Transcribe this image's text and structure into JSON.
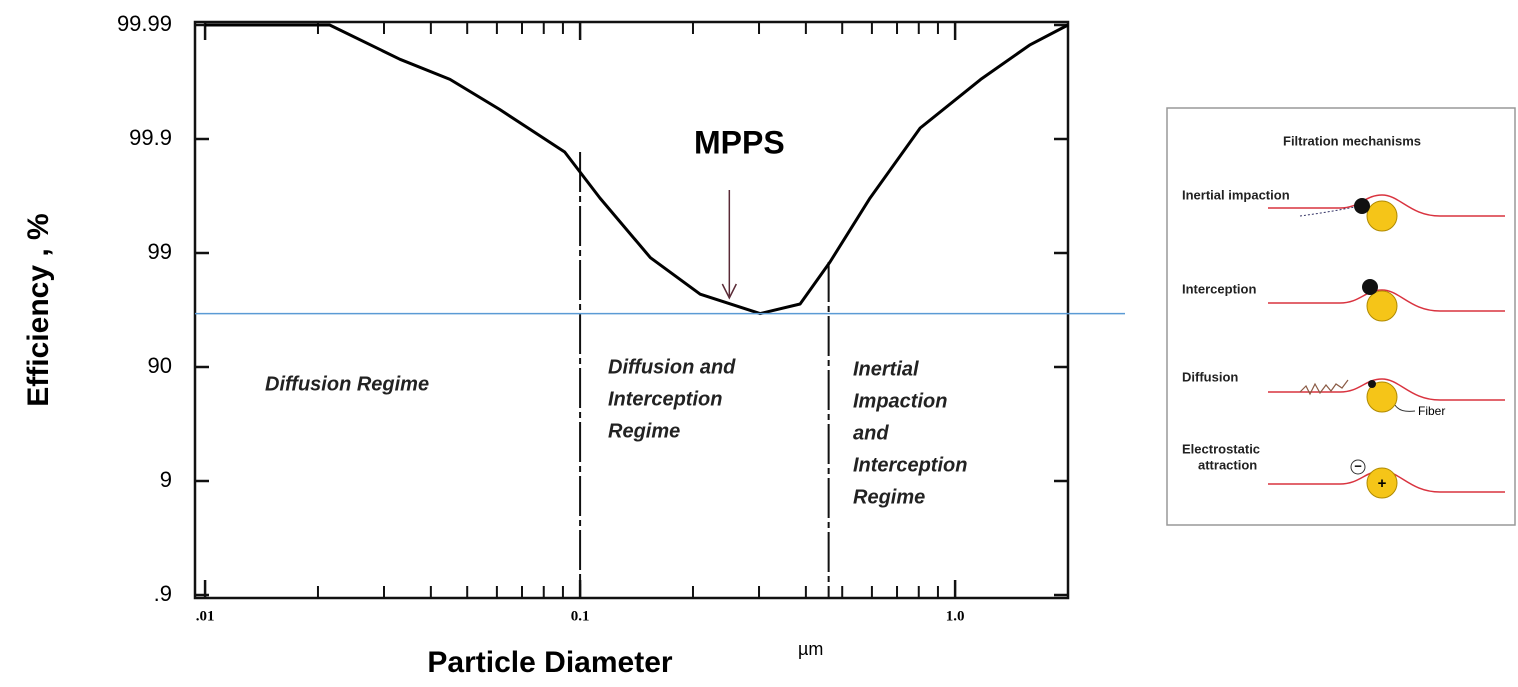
{
  "chart_data": {
    "type": "line",
    "y_label": "Efficiency , %",
    "x_label": "Particle Diameter",
    "x_unit": "µm",
    "x": [
      0.01,
      0.0215,
      0.0331,
      0.045,
      0.061,
      0.091,
      0.113,
      0.154,
      0.209,
      0.302,
      0.386,
      0.464,
      0.593,
      0.807,
      1.17,
      1.58,
      2.0
    ],
    "values": [
      99.99,
      99.99,
      99.98,
      99.97,
      99.945,
      99.87,
      99.67,
      98.9,
      97.7,
      96.6,
      97.2,
      98.8,
      99.67,
      99.92,
      99.97,
      99.985,
      99.99
    ],
    "color": "#000000",
    "log_x": true,
    "xlim": [
      0.0094,
      2
    ],
    "xticks": [
      {
        "value": 0.01,
        "label": ".01"
      },
      0.1,
      {
        "value": 1,
        "label": "1.0"
      }
    ],
    "xminorticks": [
      0.02,
      0.03,
      0.04,
      0.05,
      0.06,
      0.07,
      0.08,
      0.09,
      0.2,
      0.3,
      0.4,
      0.5,
      0.6,
      0.7,
      0.8,
      0.9
    ],
    "y_scale": "penetration",
    "ylim": [
      {
        "value": 0.9,
        "label": ".9"
      },
      99.99
    ],
    "yticks": [
      {
        "value": 0.9,
        "label": ".9"
      },
      9,
      90,
      99,
      99.9,
      99.99
    ],
    "boundaries": [
      0.1,
      0.46
    ],
    "reference_line": {
      "value": 96.6,
      "color": "#5b9bd5"
    },
    "mpps": {
      "text": "MPPS",
      "x": 0.25
    },
    "regions": [
      [
        "Diffusion Regime"
      ],
      [
        "Diffusion and",
        "Interception",
        "Regime"
      ],
      [
        "Inertial",
        "Impaction",
        "and",
        "Interception",
        "Regime"
      ]
    ]
  },
  "inset": {
    "title": "Filtration mechanisms",
    "mechanisms": [
      "Inertial impaction",
      "Interception",
      "Diffusion",
      "Electrostatic",
      "attraction"
    ],
    "fiber_label": "Fiber",
    "charge_neg": "−",
    "charge_pos": "+"
  }
}
